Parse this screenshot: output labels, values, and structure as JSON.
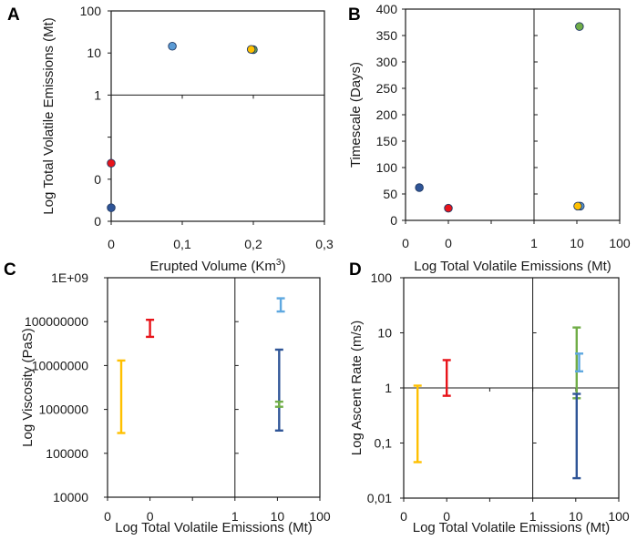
{
  "colors": {
    "red": "#e8141a",
    "light_blue": "#5b9bd5",
    "dark_blue": "#2f5597",
    "green": "#70ad47",
    "yellow": "#ffc000",
    "mid_blue": "#4a90d0",
    "sky_blue": "#5fa8e0"
  },
  "chart_data": [
    {
      "id": "A",
      "type": "scatter",
      "letter": "A",
      "xlabel": "Erupted Volume (Km3)",
      "xlabel_main": "Erupted  Volume (Km",
      "xlabel_sup": "3",
      "xlabel_close": ")",
      "ylabel": "Log Total Volatile Emissions (Mt)",
      "xlim": [
        0,
        0.3
      ],
      "ylim_log": [
        0.001,
        100
      ],
      "x_ticks": [
        0,
        0.1,
        0.2,
        0.3
      ],
      "x_tick_labels": [
        "0",
        "0,1",
        "0,2",
        "0,3"
      ],
      "y_ticks": [
        0.001,
        0.01,
        0.1,
        1,
        10,
        100
      ],
      "y_tick_labels": [
        "0",
        "0",
        "",
        "1",
        "10",
        "100"
      ],
      "reference_line_y": 1,
      "points": [
        {
          "x": 0,
          "y": 0.024,
          "color": "red"
        },
        {
          "x": 0,
          "y": 0.0021,
          "color": "dark_blue"
        },
        {
          "x": 0.086,
          "y": 14.5,
          "color": "light_blue"
        },
        {
          "x": 0.2,
          "y": 12,
          "color": "green"
        },
        {
          "x": 0.197,
          "y": 12.2,
          "color": "yellow"
        }
      ]
    },
    {
      "id": "B",
      "type": "scatter",
      "letter": "B",
      "xlabel": "Log Total Volatile  Emissions (Mt)",
      "ylabel": "Timescale (Days)",
      "xlim_log": [
        0.001,
        100
      ],
      "ylim": [
        0,
        400
      ],
      "x_ticks": [
        0.001,
        0.01,
        0.1,
        1,
        10,
        100
      ],
      "x_tick_labels": [
        "0",
        "0",
        "",
        "1",
        "10",
        "100"
      ],
      "y_ticks": [
        0,
        50,
        100,
        150,
        200,
        250,
        300,
        350,
        400
      ],
      "y_tick_labels": [
        "0",
        "50",
        "100",
        "150",
        "200",
        "250",
        "300",
        "350",
        "400"
      ],
      "reference_line_x": 1,
      "points": [
        {
          "x": 0.0021,
          "y": 62,
          "color": "dark_blue"
        },
        {
          "x": 0.01,
          "y": 23,
          "color": "red"
        },
        {
          "x": 11.5,
          "y": 367,
          "color": "green"
        },
        {
          "x": 12,
          "y": 27,
          "color": "light_blue"
        },
        {
          "x": 10.5,
          "y": 27,
          "color": "yellow"
        }
      ]
    },
    {
      "id": "C",
      "type": "errorbar",
      "letter": "C",
      "xlabel": "Log Total Volatile  Emissions (Mt)",
      "ylabel": "Log Viscosity (PaS)",
      "xlim_log": [
        0.001,
        100
      ],
      "ylim_log": [
        10000,
        1000000000
      ],
      "x_ticks": [
        0.001,
        0.01,
        0.1,
        1,
        10,
        100
      ],
      "x_tick_labels": [
        "0",
        "0",
        "",
        "1",
        "10",
        "100"
      ],
      "y_ticks": [
        10000,
        100000,
        1000000,
        10000000,
        100000000,
        1000000000
      ],
      "y_tick_labels": [
        "10000",
        "100000",
        "1000000",
        "10000000",
        "100000000",
        "1E+09"
      ],
      "reference_line_x": 1,
      "bars": [
        {
          "x": 0.0021,
          "low": 290000,
          "high": 13000000,
          "color": "yellow"
        },
        {
          "x": 0.01,
          "low": 45000000,
          "high": 110000000,
          "color": "red"
        },
        {
          "x": 11,
          "low": 330000,
          "high": 23000000,
          "color": "dark_blue"
        },
        {
          "x": 11,
          "low": 1150000,
          "high": 1500000,
          "color": "green"
        },
        {
          "x": 12,
          "low": 170000000,
          "high": 340000000,
          "color": "sky_blue"
        }
      ]
    },
    {
      "id": "D",
      "type": "errorbar",
      "letter": "D",
      "xlabel": "Log Total Volatile  Emissions (Mt)",
      "ylabel": "Log Ascent Rate (m/s)",
      "xlim_log": [
        0.001,
        100
      ],
      "ylim_log": [
        0.01,
        100
      ],
      "x_ticks": [
        0.001,
        0.01,
        0.1,
        1,
        10,
        100
      ],
      "x_tick_labels": [
        "0",
        "0",
        "",
        "1",
        "10",
        "100"
      ],
      "y_ticks": [
        0.01,
        0.1,
        1,
        10,
        100
      ],
      "y_tick_labels": [
        "0,01",
        "0,1",
        "1",
        "10",
        "100"
      ],
      "reference_line_x": 1,
      "reference_line_y": 1,
      "bars": [
        {
          "x": 0.0021,
          "low": 0.045,
          "high": 1.1,
          "color": "yellow"
        },
        {
          "x": 0.01,
          "low": 0.72,
          "high": 3.2,
          "color": "red"
        },
        {
          "x": 10.5,
          "low": 0.65,
          "high": 12.5,
          "color": "green"
        },
        {
          "x": 10.5,
          "low": 0.023,
          "high": 0.78,
          "color": "dark_blue"
        },
        {
          "x": 12,
          "low": 2.0,
          "high": 4.2,
          "color": "sky_blue"
        }
      ]
    }
  ]
}
